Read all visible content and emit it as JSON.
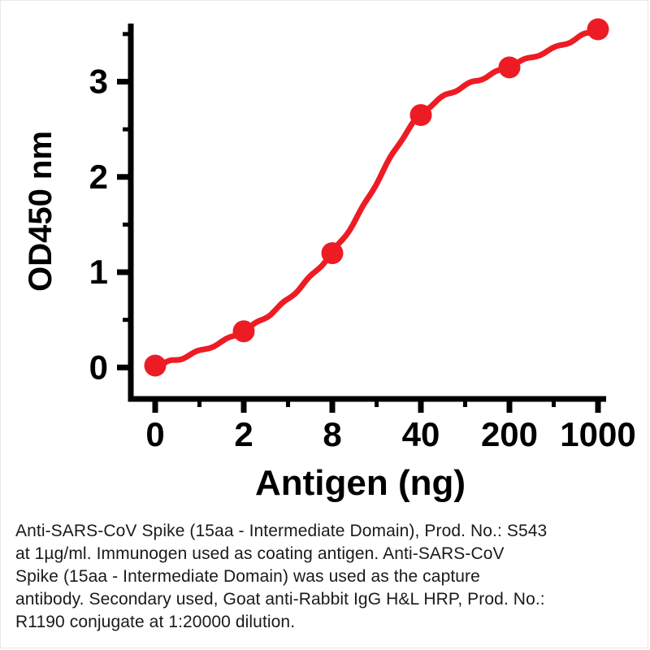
{
  "chart_data": {
    "type": "line",
    "title": "",
    "xlabel": "Antigen (ng)",
    "ylabel": "OD450 nm",
    "categories": [
      "0",
      "2",
      "8",
      "40",
      "200",
      "1000"
    ],
    "series": [
      {
        "name": "Anti-SARS-CoV Spike (15aa - Intermediate Domain)",
        "values": [
          0.02,
          0.38,
          1.2,
          2.65,
          3.15,
          3.55
        ]
      }
    ],
    "yticks": [
      0,
      1,
      2,
      3
    ],
    "ylim": [
      0,
      3.5
    ],
    "grid": false,
    "legend": false,
    "line_color": "#ed1c24",
    "marker": "circle",
    "axis_color": "#000000"
  },
  "caption": {
    "text": "Anti-SARS-CoV Spike (15aa - Intermediate Domain), Prod. No.: S543\nat 1µg/ml. Immunogen used as coating antigen. Anti-SARS-CoV\nSpike (15aa - Intermediate Domain) was used as the capture\nantibody. Secondary used, Goat anti-Rabbit IgG H&L HRP, Prod. No.:\nR1190 conjugate at 1:20000 dilution."
  }
}
